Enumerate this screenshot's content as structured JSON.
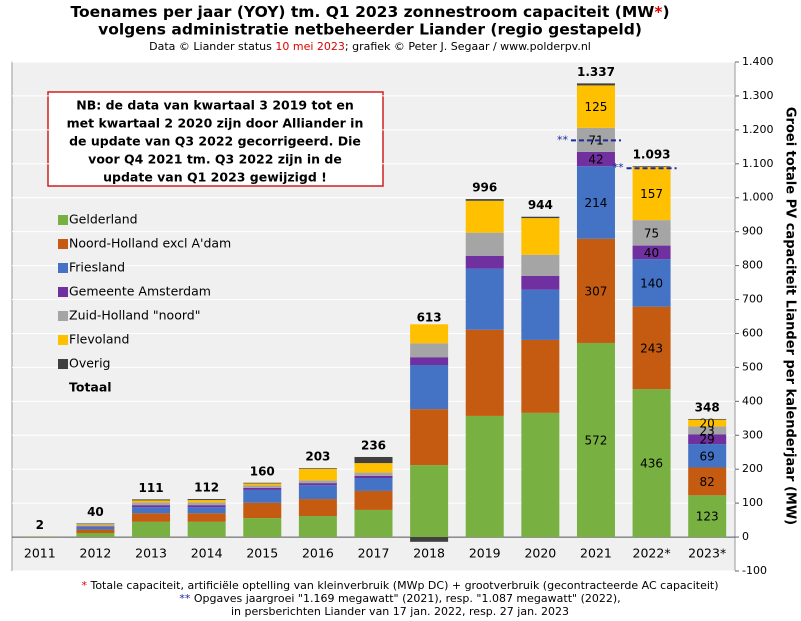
{
  "chart_data": {
    "type": "stacked_bar",
    "title": [
      "Toenames per jaar (YOY) tm. Q1 2023 zonnestroom capaciteit (MW",
      "*",
      ")"
    ],
    "title_line2": "volgens administratie  netbeheerder Liander (regio gestapeld)",
    "subtitle": [
      "Data © Liander status ",
      "10 mei 2023",
      "; grafiek © Peter J. Segaar / www.polderpv.nl"
    ],
    "y_label": "Groei totale PV capaciteit Liander per kalenderjaar (MW)",
    "note": [
      "NB: de data van kwartaal  3 2019 tot en",
      "met kwartaal 2 2020 zijn door Alliander in",
      "de update van Q3 2022 gecorrigeerd. Die",
      "voor Q4 2021 tm. Q3 2022 zijn in de",
      "update van Q1 2023 gewijzigd  !"
    ],
    "categories": [
      "2011",
      "2012",
      "2013",
      "2014",
      "2015",
      "2016",
      "2017",
      "2018",
      "2019",
      "2020",
      "2021",
      "2022*",
      "2023*"
    ],
    "series": [
      {
        "name": "Gelderland",
        "color": "#78b042",
        "values": [
          1,
          12,
          45,
          45,
          56,
          62,
          80,
          212,
          357,
          366,
          572,
          436,
          123
        ],
        "value_labels": [
          null,
          null,
          null,
          null,
          null,
          null,
          null,
          null,
          null,
          null,
          "572",
          "436",
          "123"
        ]
      },
      {
        "name": "Noord-Holland excl A'dam",
        "color": "#c55a11",
        "values": [
          0,
          10,
          25,
          25,
          45,
          50,
          56,
          165,
          254,
          215,
          307,
          243,
          82
        ],
        "value_labels": [
          null,
          null,
          null,
          null,
          null,
          null,
          null,
          null,
          null,
          null,
          "307",
          "243",
          "82"
        ]
      },
      {
        "name": "Friesland",
        "color": "#4472c4",
        "values": [
          0.5,
          8,
          18,
          18,
          38,
          41,
          38,
          130,
          180,
          148,
          214,
          140,
          69
        ],
        "value_labels": [
          null,
          null,
          null,
          null,
          null,
          null,
          null,
          null,
          null,
          null,
          "214",
          "140",
          "69"
        ]
      },
      {
        "name": "Gemeente Amsterdam",
        "color": "#7030a0",
        "values": [
          0,
          2,
          6,
          6,
          6,
          6,
          6,
          23,
          38,
          41,
          42,
          40,
          29
        ],
        "value_labels": [
          null,
          null,
          null,
          null,
          null,
          null,
          null,
          null,
          null,
          null,
          "42",
          "40",
          "29"
        ]
      },
      {
        "name": "Zuid-Holland \"noord\"",
        "color": "#a5a5a5",
        "values": [
          0,
          3,
          8,
          8,
          7,
          8,
          10,
          41,
          68,
          62,
          71,
          75,
          23
        ],
        "value_labels": [
          null,
          null,
          null,
          null,
          null,
          null,
          null,
          null,
          null,
          null,
          "71",
          "75",
          "23"
        ]
      },
      {
        "name": "Flevoland",
        "color": "#ffc000",
        "values": [
          0.5,
          3,
          6,
          7,
          6,
          34,
          28,
          56,
          94,
          108,
          125,
          157,
          20
        ],
        "value_labels": [
          null,
          null,
          null,
          null,
          null,
          null,
          null,
          null,
          null,
          null,
          "125",
          "157",
          "20"
        ]
      },
      {
        "name": "Overig",
        "color": "#404040",
        "values": [
          0,
          2,
          3,
          3,
          2,
          2,
          18,
          -14,
          5,
          4,
          6,
          2,
          2
        ]
      }
    ],
    "totals": {
      "name": "Totaal",
      "values": [
        2,
        40,
        111,
        112,
        160,
        203,
        236,
        613,
        996,
        944,
        1337,
        1093,
        348
      ],
      "value_labels": [
        "2",
        "40",
        "111",
        "112",
        "160",
        "203",
        "236",
        "613",
        "996",
        "944",
        "1.337",
        "1.093",
        "348"
      ]
    },
    "reference_lines": [
      {
        "label": "**",
        "x": "2021",
        "value": 1169
      },
      {
        "label": "**",
        "x": "2022*",
        "value": 1087
      }
    ],
    "ylim": [
      -100,
      1400
    ],
    "yticks": [
      -100,
      0,
      100,
      200,
      300,
      400,
      500,
      600,
      700,
      800,
      900,
      {
        "value": 1000,
        "label": "1.000"
      },
      {
        "value": 1100,
        "label": "1.100"
      },
      {
        "value": 1200,
        "label": "1.200"
      },
      {
        "value": 1300,
        "label": "1.300"
      },
      {
        "value": 1400,
        "label": "1.400"
      }
    ],
    "grid": true,
    "footnotes": [
      {
        "mark": "*",
        "lines": [
          "Totale capaciteit, artificiële optelling van kleinverbruik (MWp DC) + grootverbruik (gecontracteerde AC capaciteit)"
        ]
      },
      {
        "mark": "**",
        "lines": [
          "Opgaves jaargroei \"1.169 megawatt\" (2021), resp. \"1.087 megawatt\" (2022),",
          "in persberichten Liander van 17 jan. 2022, resp. 27 jan. 2023"
        ]
      }
    ]
  }
}
